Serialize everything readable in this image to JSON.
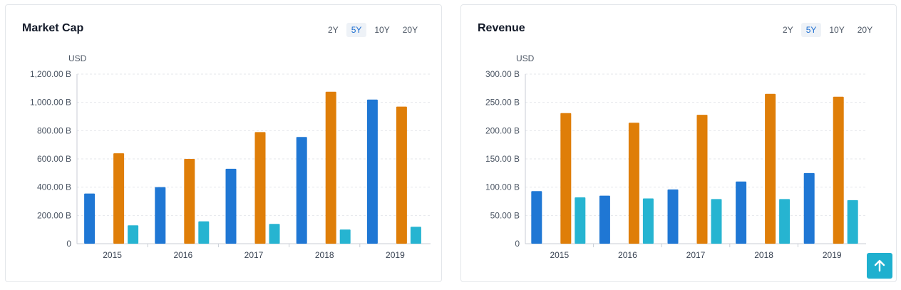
{
  "colors": {
    "series1": "#1f77d4",
    "series2": "#df7e08",
    "series3": "#26b4d1",
    "grid": "#e5e7eb",
    "axis": "#c9ced6"
  },
  "range_options": [
    "2Y",
    "5Y",
    "10Y",
    "20Y"
  ],
  "range_selected": "5Y",
  "scroll_top_icon": "arrow-up-icon",
  "chart_data": [
    {
      "type": "bar",
      "title": "Market Cap",
      "ylabel": "USD",
      "categories": [
        "2015",
        "2016",
        "2017",
        "2018",
        "2019"
      ],
      "ylim": [
        0,
        1200
      ],
      "yticks": [
        "0",
        "200.00 B",
        "400.00 B",
        "600.00 B",
        "800.00 B",
        "1,000.00 B",
        "1,200.00 B"
      ],
      "grid": true,
      "series": [
        {
          "values": [
            355,
            400,
            530,
            755,
            1020
          ]
        },
        {
          "values": [
            640,
            600,
            790,
            1075,
            970
          ]
        },
        {
          "values": [
            130,
            158,
            140,
            100,
            120
          ]
        }
      ]
    },
    {
      "type": "bar",
      "title": "Revenue",
      "ylabel": "USD",
      "categories": [
        "2015",
        "2016",
        "2017",
        "2018",
        "2019"
      ],
      "ylim": [
        0,
        300
      ],
      "yticks": [
        "0",
        "50.00 B",
        "100.00 B",
        "150.00 B",
        "200.00 B",
        "250.00 B",
        "300.00 B"
      ],
      "grid": true,
      "series": [
        {
          "values": [
            93,
            85,
            96,
            110,
            125
          ]
        },
        {
          "values": [
            231,
            214,
            228,
            265,
            260
          ]
        },
        {
          "values": [
            82,
            80,
            79,
            79,
            77
          ]
        }
      ]
    }
  ]
}
